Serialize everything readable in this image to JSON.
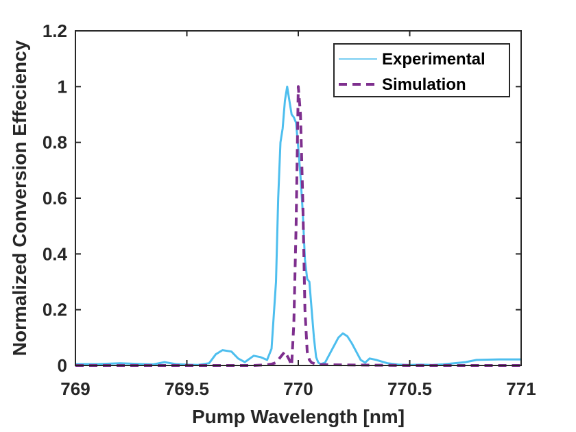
{
  "chart_data": {
    "type": "line",
    "title": "",
    "xlabel": "Pump Wavelength [nm]",
    "ylabel": "Normalized Conversion Effeciency",
    "xlim": [
      769,
      771
    ],
    "ylim": [
      0,
      1.2
    ],
    "xticks": [
      769,
      769.5,
      770,
      770.5,
      771
    ],
    "xtick_labels": [
      "769",
      "769.5",
      "770",
      "770.5",
      "771"
    ],
    "yticks": [
      0,
      0.2,
      0.4,
      0.6,
      0.8,
      1,
      1.2
    ],
    "ytick_labels": [
      "0",
      "0.2",
      "0.4",
      "0.6",
      "0.8",
      "1",
      "1.2"
    ],
    "grid": false,
    "legend_position": "top-right",
    "series": [
      {
        "name": "Experimental",
        "color": "#4DBEEE",
        "style": "solid",
        "x": [
          769.0,
          769.1,
          769.2,
          769.3,
          769.35,
          769.4,
          769.45,
          769.5,
          769.55,
          769.6,
          769.63,
          769.66,
          769.7,
          769.73,
          769.76,
          769.8,
          769.83,
          769.86,
          769.88,
          769.9,
          769.91,
          769.92,
          769.93,
          769.94,
          769.95,
          769.96,
          769.97,
          769.98,
          769.99,
          770.0,
          770.01,
          770.02,
          770.03,
          770.04,
          770.05,
          770.06,
          770.07,
          770.08,
          770.09,
          770.1,
          770.12,
          770.14,
          770.16,
          770.18,
          770.2,
          770.22,
          770.24,
          770.26,
          770.28,
          770.3,
          770.32,
          770.35,
          770.4,
          770.45,
          770.5,
          770.55,
          770.6,
          770.65,
          770.7,
          770.75,
          770.8,
          770.9,
          771.0
        ],
        "values": [
          0.005,
          0.005,
          0.008,
          0.005,
          0.004,
          0.012,
          0.005,
          0.003,
          0.002,
          0.008,
          0.04,
          0.055,
          0.05,
          0.025,
          0.012,
          0.035,
          0.03,
          0.02,
          0.06,
          0.3,
          0.6,
          0.8,
          0.85,
          0.95,
          1.0,
          0.95,
          0.9,
          0.89,
          0.87,
          0.78,
          0.68,
          0.55,
          0.38,
          0.31,
          0.3,
          0.2,
          0.1,
          0.03,
          0.01,
          0.005,
          0.01,
          0.04,
          0.07,
          0.1,
          0.115,
          0.105,
          0.08,
          0.05,
          0.02,
          0.01,
          0.025,
          0.02,
          0.008,
          0.003,
          0.002,
          0.003,
          0.002,
          0.004,
          0.008,
          0.012,
          0.02,
          0.022,
          0.022
        ]
      },
      {
        "name": "Simulation",
        "color": "#7E2F8E",
        "style": "dashed",
        "x": [
          769.0,
          769.5,
          769.8,
          769.85,
          769.88,
          769.9,
          769.92,
          769.94,
          769.96,
          769.97,
          769.98,
          769.99,
          770.0,
          770.01,
          770.02,
          770.03,
          770.04,
          770.05,
          770.06,
          770.08,
          770.1,
          770.2,
          770.5,
          771.0
        ],
        "values": [
          0.0,
          0.0,
          0.0,
          0.002,
          0.005,
          0.01,
          0.03,
          0.05,
          0.02,
          0.0,
          0.15,
          0.5,
          1.0,
          0.9,
          0.6,
          0.2,
          0.05,
          0.02,
          0.01,
          0.005,
          0.003,
          0.002,
          0.0,
          0.0
        ]
      }
    ]
  }
}
